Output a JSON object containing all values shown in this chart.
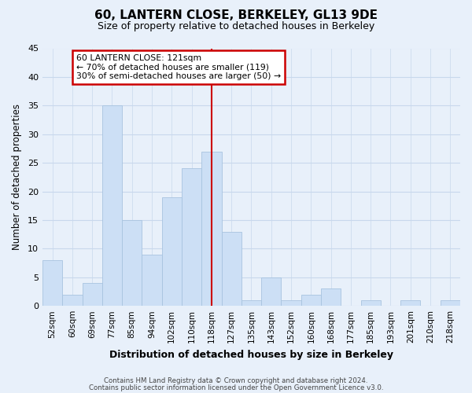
{
  "title": "60, LANTERN CLOSE, BERKELEY, GL13 9DE",
  "subtitle": "Size of property relative to detached houses in Berkeley",
  "xlabel": "Distribution of detached houses by size in Berkeley",
  "ylabel": "Number of detached properties",
  "bar_labels": [
    "52sqm",
    "60sqm",
    "69sqm",
    "77sqm",
    "85sqm",
    "94sqm",
    "102sqm",
    "110sqm",
    "118sqm",
    "127sqm",
    "135sqm",
    "143sqm",
    "152sqm",
    "160sqm",
    "168sqm",
    "177sqm",
    "185sqm",
    "193sqm",
    "201sqm",
    "210sqm",
    "218sqm"
  ],
  "bar_values": [
    8,
    2,
    4,
    35,
    15,
    9,
    19,
    24,
    27,
    13,
    1,
    5,
    1,
    2,
    3,
    0,
    1,
    0,
    1,
    0,
    1
  ],
  "bar_color": "#ccdff5",
  "bar_edge_color": "#a8c4e0",
  "grid_color": "#c8d8ec",
  "background_color": "#e8f0fa",
  "plot_background_color": "#e8f0fa",
  "vline_x_idx": 8,
  "vline_color": "#cc0000",
  "annotation_title": "60 LANTERN CLOSE: 121sqm",
  "annotation_line1": "← 70% of detached houses are smaller (119)",
  "annotation_line2": "30% of semi-detached houses are larger (50) →",
  "annotation_box_facecolor": "#ffffff",
  "annotation_border_color": "#cc0000",
  "ylim": [
    0,
    45
  ],
  "yticks": [
    0,
    5,
    10,
    15,
    20,
    25,
    30,
    35,
    40,
    45
  ],
  "footer_line1": "Contains HM Land Registry data © Crown copyright and database right 2024.",
  "footer_line2": "Contains public sector information licensed under the Open Government Licence v3.0."
}
